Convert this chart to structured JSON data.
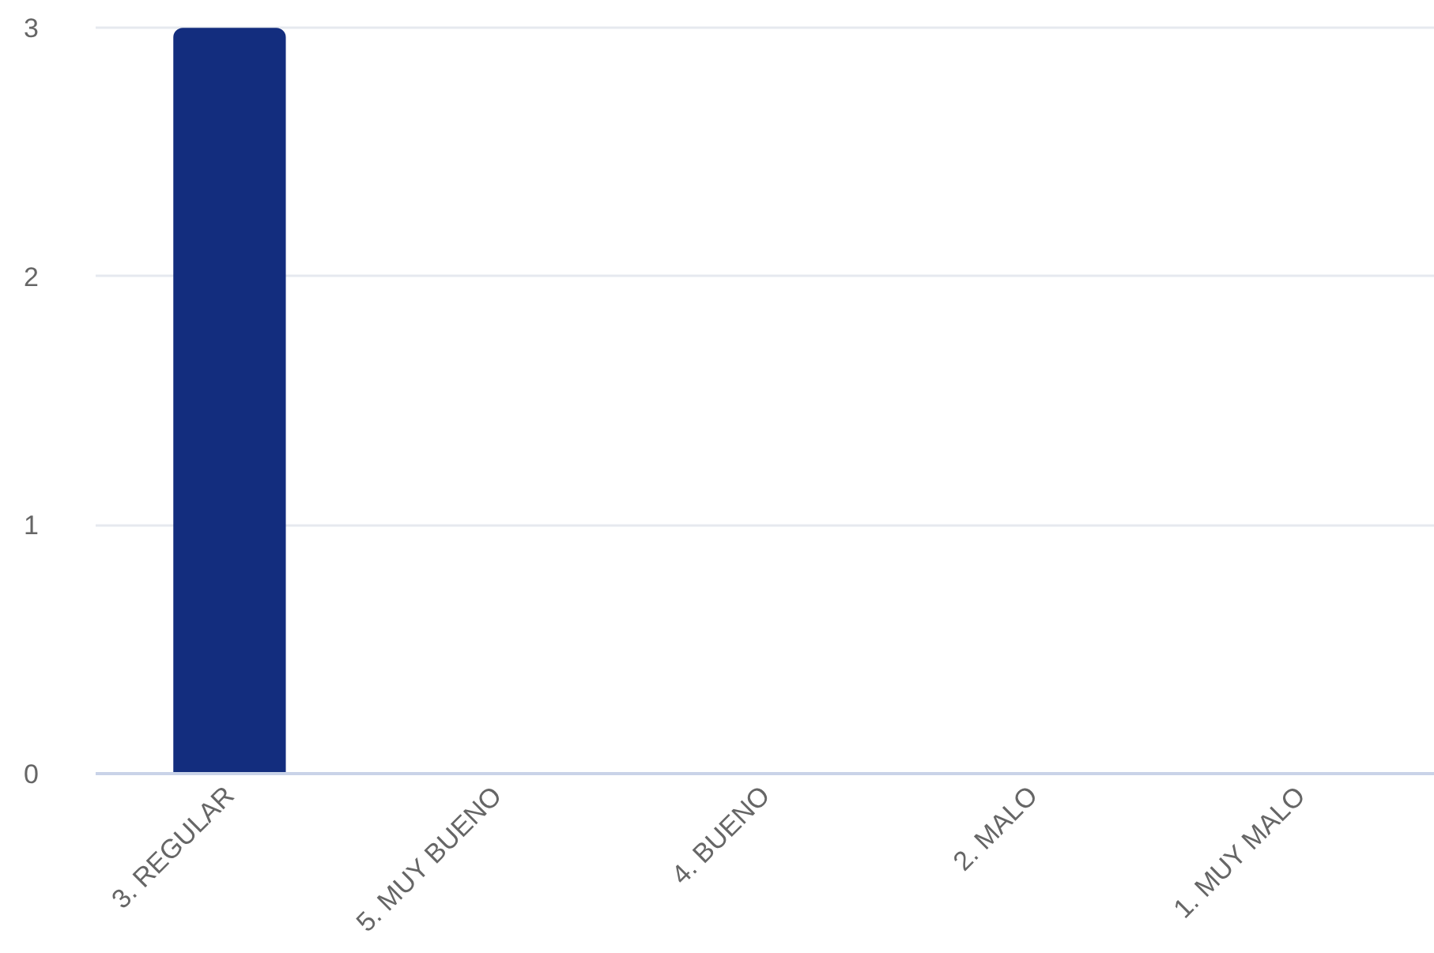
{
  "chart_data": {
    "type": "bar",
    "categories": [
      "3. REGULAR",
      "5. MUY BUENO",
      "4. BUENO",
      "2. MALO",
      "1. MUY MALO"
    ],
    "values": [
      3,
      0,
      0,
      0,
      0
    ],
    "color": "#132d7e",
    "ylim": [
      0,
      3
    ],
    "yticks": [
      0,
      1,
      2,
      3
    ],
    "grid": "y"
  }
}
